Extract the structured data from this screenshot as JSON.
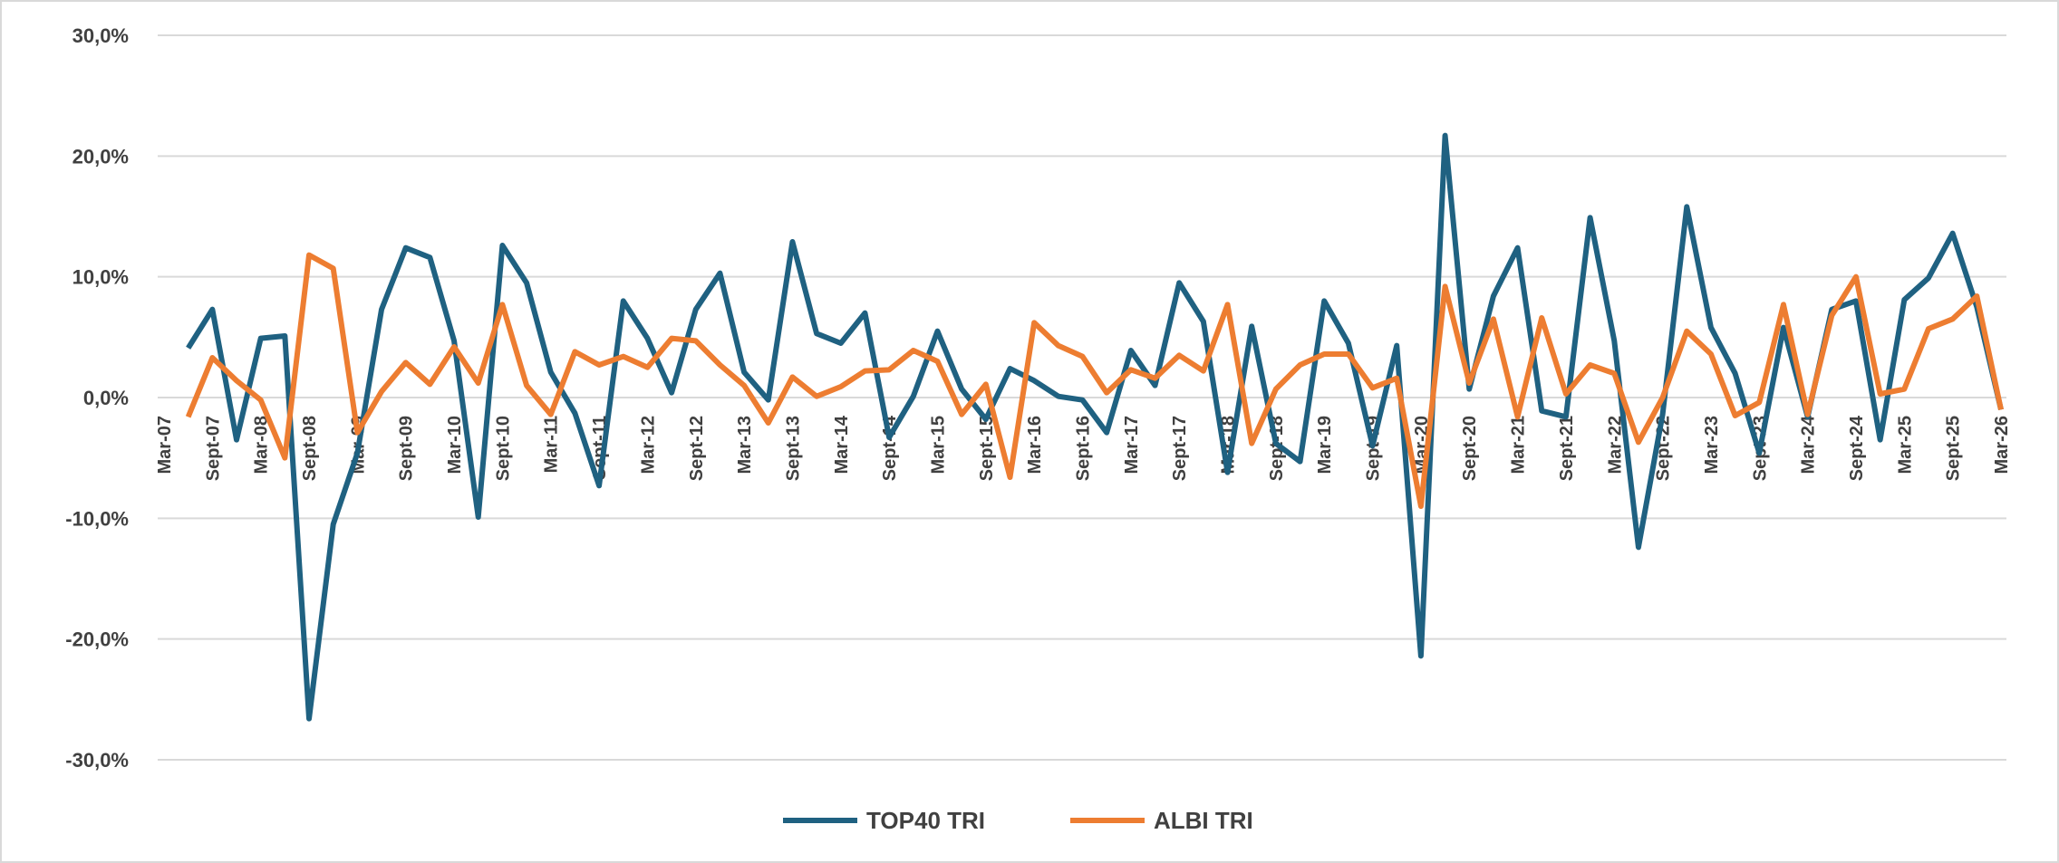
{
  "chart_data": {
    "type": "line",
    "categories": [
      "Mar-07",
      null,
      "Sept-07",
      null,
      "Mar-08",
      null,
      "Sept-08",
      null,
      "Mar-09",
      null,
      "Sept-09",
      null,
      "Mar-10",
      null,
      "Sept-10",
      null,
      "Mar-11",
      null,
      "Sept-11",
      null,
      "Mar-12",
      null,
      "Sept-12",
      null,
      "Mar-13",
      null,
      "Sept-13",
      null,
      "Mar-14",
      null,
      "Sept-14",
      null,
      "Mar-15",
      null,
      "Sept-15",
      null,
      "Mar-16",
      null,
      "Sept-16",
      null,
      "Mar-17",
      null,
      "Sept-17",
      null,
      "Mar-18",
      null,
      "Sept-18",
      null,
      "Mar-19",
      null,
      "Sept-19",
      null,
      "Mar-20",
      null,
      "Sept-20",
      null,
      "Mar-21",
      null,
      "Sept-21",
      null,
      "Mar-22",
      null,
      "Sept-22",
      null,
      "Mar-23",
      null,
      "Sept-23",
      null,
      "Mar-24",
      null,
      "Sept-24",
      null,
      "Mar-25",
      null,
      "Sept-25",
      null,
      "Mar-26"
    ],
    "series": [
      {
        "name": "TOP40 TRI",
        "color": "#1f6181",
        "values": [
          null,
          4.1,
          7.3,
          -3.5,
          4.9,
          5.1,
          -26.6,
          -10.5,
          -4.6,
          7.3,
          12.4,
          11.6,
          4.7,
          -9.9,
          12.6,
          9.5,
          2.1,
          -1.3,
          -7.3,
          8.0,
          4.9,
          0.4,
          7.3,
          10.3,
          2.1,
          -0.2,
          12.9,
          5.3,
          4.5,
          7.0,
          -3.3,
          0.1,
          5.5,
          0.7,
          -1.8,
          2.4,
          1.4,
          0.1,
          -0.2,
          -2.9,
          3.9,
          1.0,
          9.5,
          6.3,
          -6.2,
          5.9,
          -3.8,
          -5.3,
          8.0,
          4.5,
          -4.0,
          4.3,
          -21.4,
          21.7,
          0.7,
          8.4,
          12.4,
          -1.1,
          -1.6,
          14.9,
          4.7,
          -12.4,
          -1.4,
          15.8,
          5.8,
          2.0,
          -4.6,
          5.8,
          -1.6,
          7.3,
          8.0,
          -3.5,
          8.1,
          9.9,
          13.6,
          7.5,
          -1.0
        ]
      },
      {
        "name": "ALBI TRI",
        "color": "#ed7d31",
        "values": [
          null,
          -1.6,
          3.3,
          1.4,
          -0.2,
          -5.0,
          11.8,
          10.7,
          -2.9,
          0.5,
          2.9,
          1.1,
          4.2,
          1.2,
          7.7,
          1.0,
          -1.4,
          3.8,
          2.7,
          3.4,
          2.5,
          4.9,
          4.7,
          2.7,
          1.0,
          -2.1,
          1.7,
          0.1,
          0.9,
          2.2,
          2.3,
          3.9,
          3.0,
          -1.4,
          1.1,
          -6.6,
          6.2,
          4.3,
          3.4,
          0.4,
          2.3,
          1.6,
          3.5,
          2.2,
          7.7,
          -3.8,
          0.7,
          2.7,
          3.6,
          3.6,
          0.8,
          1.6,
          -9.0,
          9.2,
          1.2,
          6.5,
          -1.6,
          6.6,
          0.3,
          2.7,
          2.0,
          -3.7,
          0.0,
          5.5,
          3.6,
          -1.5,
          -0.4,
          7.7,
          -1.4,
          6.8,
          10.0,
          0.3,
          0.7,
          5.7,
          6.5,
          8.4,
          -1.0
        ]
      }
    ],
    "ylim": [
      -30,
      30
    ],
    "yticks": [
      {
        "value": -30,
        "label": "-30,0%"
      },
      {
        "value": -20,
        "label": "-20,0%"
      },
      {
        "value": -10,
        "label": "-10,0%"
      },
      {
        "value": 0,
        "label": "0,0%"
      },
      {
        "value": 10,
        "label": "10,0%"
      },
      {
        "value": 20,
        "label": "20,0%"
      },
      {
        "value": 30,
        "label": "30,0%"
      }
    ],
    "grid": true,
    "legend": "bottom"
  }
}
